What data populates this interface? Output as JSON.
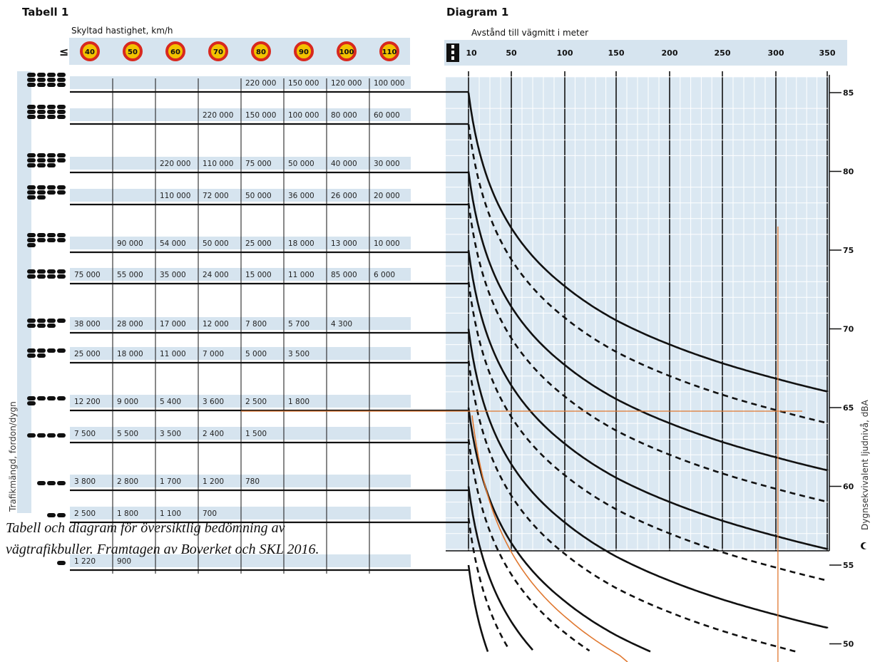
{
  "table": {
    "title": "Tabell 1",
    "speed_label": "Skyltad hastighet, km/h",
    "leq_symbol": "≤",
    "speeds": [
      "40",
      "50",
      "60",
      "70",
      "80",
      "90",
      "100",
      "110"
    ],
    "side_label": "Trafikmängd, fordon/dygn",
    "rows": [
      [
        "",
        "",
        "",
        "",
        "220 000",
        "150 000",
        "120 000",
        "100 000"
      ],
      [
        "",
        "",
        "",
        "220 000",
        "150 000",
        "100 000",
        "80 000",
        "60 000"
      ],
      [
        "",
        "",
        "220 000",
        "110 000",
        "75 000",
        "50 000",
        "40 000",
        "30 000"
      ],
      [
        "",
        "",
        "110 000",
        "72 000",
        "50 000",
        "36 000",
        "26 000",
        "20 000"
      ],
      [
        "",
        "90 000",
        "54 000",
        "50 000",
        "25 000",
        "18 000",
        "13 000",
        "10 000"
      ],
      [
        "75 000",
        "55 000",
        "35 000",
        "24 000",
        "15 000",
        "11 000",
        "85 000",
        "6 000"
      ],
      [
        "38 000",
        "28 000",
        "17 000",
        "12 000",
        "7 800",
        "5 700",
        "4 300",
        ""
      ],
      [
        "25 000",
        "18 000",
        "11 000",
        "7 000",
        "5 000",
        "3 500",
        "",
        ""
      ],
      [
        "12 200",
        "9 000",
        "5 400",
        "3 600",
        "2 500",
        "1 800",
        "",
        ""
      ],
      [
        "7 500",
        "5 500",
        "3 500",
        "2 400",
        "1 500",
        "",
        "",
        ""
      ],
      [
        "3 800",
        "2 800",
        "1 700",
        "1 200",
        "780",
        "",
        "",
        ""
      ],
      [
        "2 500",
        "1 800",
        "1 100",
        "700",
        "",
        "",
        "",
        ""
      ],
      [
        "1 220",
        "900",
        "",
        "",
        "",
        "",
        "",
        ""
      ]
    ]
  },
  "diagram": {
    "title": "Diagram 1",
    "distance_label": "Avstånd till vägmitt i meter",
    "level_label": "Dygnsekvivalent ljudnivå, dBA"
  },
  "caption": {
    "line1": "Tabell och diagram för översiktlig bedömning av",
    "line2": "vägtrafikbuller. Framtagen av Boverket och SKL 2016."
  },
  "chart_data": {
    "type": "line",
    "title": "Diagram 1",
    "xlabel": "Avstånd till vägmitt i meter",
    "ylabel": "Dygnsekvivalent ljudnivå, dBA",
    "x_ticks": [
      10,
      50,
      100,
      150,
      200,
      250,
      300,
      350
    ],
    "y_ticks": [
      50,
      55,
      60,
      65,
      70,
      75,
      80,
      85
    ],
    "xlim": [
      10,
      350
    ],
    "ylim": [
      50,
      85
    ],
    "series_start_levels": [
      85,
      83,
      80,
      78,
      75,
      73,
      70,
      68,
      65,
      63,
      60,
      58,
      55
    ],
    "series_dashed": [
      false,
      true,
      false,
      true,
      false,
      true,
      false,
      true,
      false,
      true,
      false,
      true,
      false
    ],
    "decay_per_doubling_dBA": 3.7,
    "annotation_lines": [
      {
        "from": [
          0,
          65
        ],
        "to": [
          320,
          65
        ],
        "color": "#e07830"
      },
      {
        "from": [
          302,
          76.5
        ],
        "to": [
          302,
          49.5
        ],
        "color": "#e07830"
      },
      {
        "from": [
          10,
          64.5
        ],
        "to": [
          150,
          49
        ],
        "color": "#e07830"
      }
    ]
  }
}
